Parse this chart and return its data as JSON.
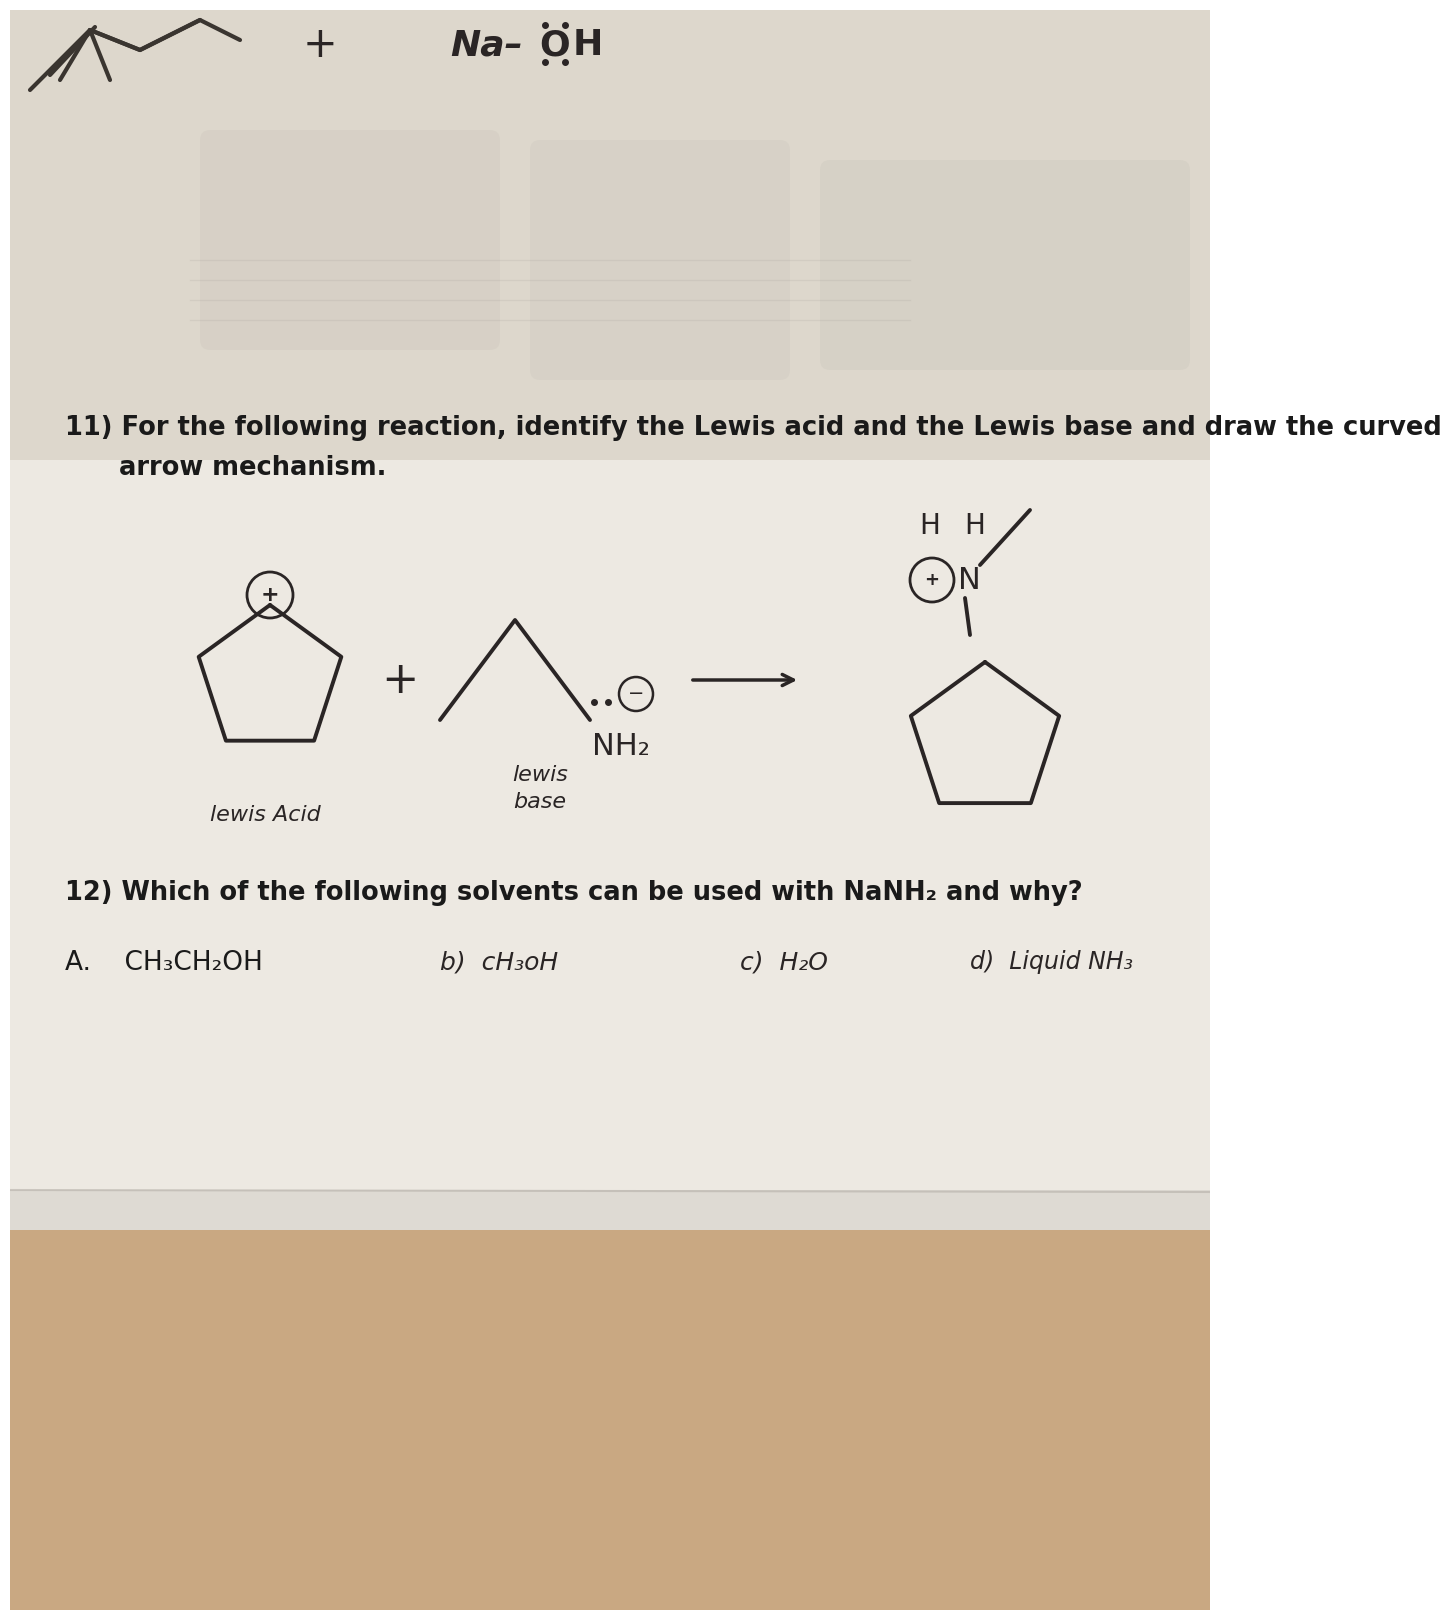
{
  "bg_top_color": "#e8e2d8",
  "bg_paper_color": "#ede9e2",
  "bg_bottom_color": "#c9a882",
  "q11_line1": "11) For the following reaction, identify the Lewis acid and the Lewis base and draw the curved",
  "q11_line2": "      arrow mechanism.",
  "q12_text": "12) Which of the following solvents can be used with NaNH₂ and why?",
  "lewis_acid_label": "lewis Acid",
  "lewis_base_line1": "lewis",
  "lewis_base_line2": "base",
  "option_a": "A.    CH₃CH₂OH",
  "option_b": "b)  cH₃oH",
  "option_c": "c)  H₂O",
  "option_d": "d)  Liquid NH₃",
  "text_color": "#1a1a1a",
  "ink_color": "#2a2525"
}
